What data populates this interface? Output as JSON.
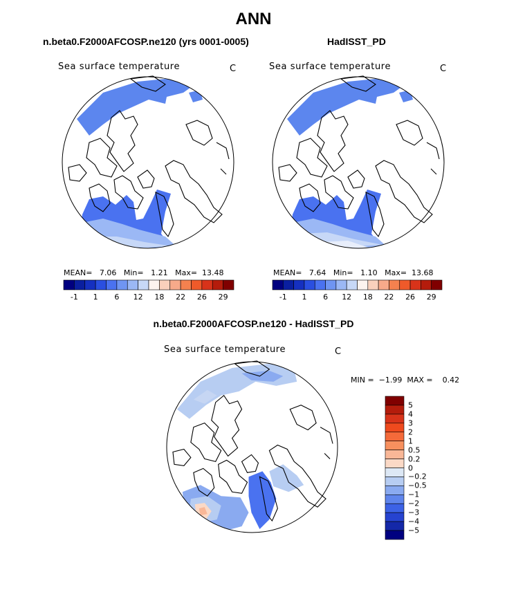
{
  "chart_data": {
    "type": "polar-contour-map",
    "title": "ANN",
    "panels": [
      {
        "id": "model",
        "title": "n.beta0.F2000AFCOSP.ne120 (yrs 0001-0005)",
        "variable": "Sea surface temperature",
        "units": "C",
        "stats_text": "MEAN=   7.06   Min=   1.21   Max=  13.48",
        "mean": 7.06,
        "min": 1.21,
        "max": 13.48,
        "colorbar": {
          "colors": [
            "#000080",
            "#0a1fa0",
            "#1530c0",
            "#2a4fe0",
            "#4a72f0",
            "#6f95f2",
            "#9bb8f5",
            "#c7d8f7",
            "#fdf3ef",
            "#f9d0bc",
            "#f7aa8a",
            "#f4814f",
            "#ef5a2a",
            "#d8331a",
            "#b41c0c",
            "#800000"
          ],
          "tick_labels": [
            "-1",
            "1",
            "6",
            "12",
            "18",
            "22",
            "26",
            "29"
          ]
        }
      },
      {
        "id": "obs",
        "title": "HadISST_PD",
        "variable": "Sea surface temperature",
        "units": "C",
        "stats_text": "MEAN=   7.64   Min=   1.10   Max=  13.68",
        "mean": 7.64,
        "min": 1.1,
        "max": 13.68,
        "colorbar": {
          "colors": [
            "#000080",
            "#0a1fa0",
            "#1530c0",
            "#2a4fe0",
            "#4a72f0",
            "#6f95f2",
            "#9bb8f5",
            "#c7d8f7",
            "#fdf3ef",
            "#f9d0bc",
            "#f7aa8a",
            "#f4814f",
            "#ef5a2a",
            "#d8331a",
            "#b41c0c",
            "#800000"
          ],
          "tick_labels": [
            "-1",
            "1",
            "6",
            "12",
            "18",
            "22",
            "26",
            "29"
          ]
        }
      },
      {
        "id": "diff",
        "title": "n.beta0.F2000AFCOSP.ne120 - HadISST_PD",
        "variable": "Sea surface temperature",
        "units": "C",
        "stats_text": "MIN =  −1.99  MAX =    0.42",
        "min": -1.99,
        "max": 0.42,
        "colorbar": {
          "colors": [
            "#800000",
            "#b41c0c",
            "#d8331a",
            "#ef4a1e",
            "#f46a3a",
            "#f7905e",
            "#f9b797",
            "#fbd9c6",
            "#dde8f5",
            "#b7cdf2",
            "#8aaaf0",
            "#5f85ec",
            "#3c62e6",
            "#2643d0",
            "#1428a8",
            "#000080"
          ],
          "tick_labels": [
            "5",
            "4",
            "3",
            "2",
            "1",
            "0.5",
            "0.2",
            "0",
            "−0.2",
            "−0.5",
            "−1",
            "−2",
            "−3",
            "−4",
            "−5"
          ]
        }
      }
    ]
  }
}
